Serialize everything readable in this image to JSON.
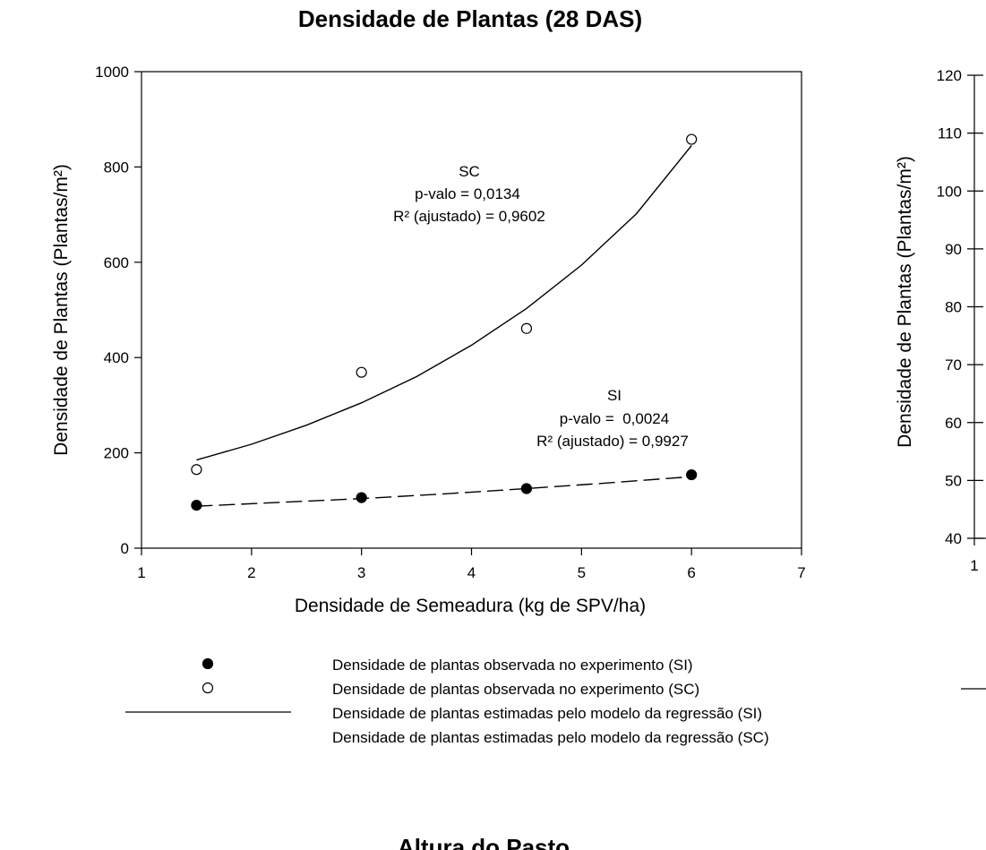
{
  "chart_data": [
    {
      "type": "scatter",
      "title": "Densidade de Plantas (28 DAS)",
      "xlabel": "Densidade de Semeadura (kg de SPV/ha)",
      "ylabel": "Densidade de Plantas (Plantas/m²)",
      "xlim": [
        1,
        7
      ],
      "ylim": [
        0,
        1000
      ],
      "xticks": [
        1,
        2,
        3,
        4,
        5,
        6,
        7
      ],
      "yticks": [
        0,
        200,
        400,
        600,
        800,
        1000
      ],
      "grid": false,
      "series": [
        {
          "name": "Densidade de plantas observada no experimento (SI)",
          "marker": "filled-circle",
          "x": [
            1.5,
            3,
            4.5,
            6
          ],
          "y": [
            90,
            106,
            125,
            154
          ]
        },
        {
          "name": "Densidade de plantas observada no experimento (SC)",
          "marker": "open-circle",
          "x": [
            1.5,
            3,
            4.5,
            6
          ],
          "y": [
            165,
            369,
            461,
            858
          ]
        },
        {
          "name": "Densidade de plantas estimadas pelo modelo da regressão (SI)",
          "line": "dashed",
          "x": [
            1.5,
            2.25,
            3,
            3.75,
            4.5,
            5.25,
            6
          ],
          "y": [
            88,
            96,
            104,
            114,
            125,
            137,
            150
          ]
        },
        {
          "name": "Densidade de plantas estimadas pelo modelo da regressão (SC)",
          "line": "solid",
          "x": [
            1.5,
            2,
            2.5,
            3,
            3.5,
            4,
            4.5,
            5,
            5.5,
            6
          ],
          "y": [
            185,
            218,
            258,
            305,
            360,
            426,
            503,
            594,
            702,
            845
          ]
        }
      ],
      "annotations": [
        {
          "lines": [
            "SC",
            "p-valo = 0,0134",
            "R² (ajustado) = 0,9602"
          ]
        },
        {
          "lines": [
            "SI",
            "p-valo =  0,0024",
            "R² (ajustado) = 0,9927"
          ]
        }
      ],
      "legend": {
        "placement": "bottom",
        "entries": [
          "Densidade de plantas observada no experimento (SI)",
          "Densidade de plantas observada no experimento (SC)",
          "Densidade de plantas estimadas pelo modelo da regressão (SI)",
          "Densidade de plantas estimadas pelo modelo da regressão (SC)"
        ]
      }
    },
    {
      "type": "scatter",
      "partial": true,
      "ylabel": "Densidade de Plantas (Plantas/m²)",
      "ylim": [
        40,
        120
      ],
      "yticks": [
        40,
        50,
        60,
        70,
        80,
        90,
        100,
        110,
        120
      ],
      "xticks": [
        1
      ]
    },
    {
      "type": "scatter",
      "partial": true,
      "title": "Altura do Pasto"
    }
  ]
}
